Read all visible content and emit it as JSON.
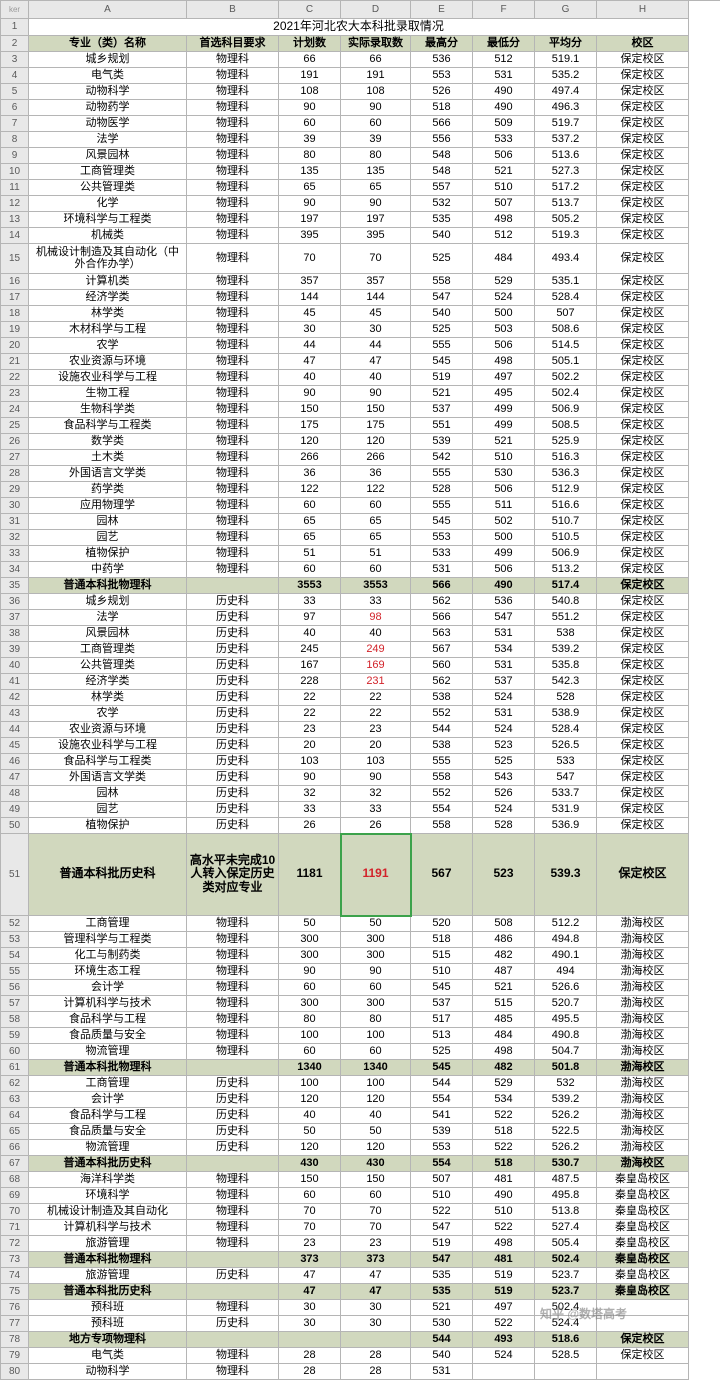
{
  "colHeaders": [
    "ker",
    "A",
    "B",
    "C",
    "D",
    "E",
    "F",
    "G",
    "H"
  ],
  "title": "2021年河北农大本科批录取情况",
  "headerRow": [
    "专业（类）名称",
    "首选科目要求",
    "计划数",
    "实际录取数",
    "最高分",
    "最低分",
    "平均分",
    "校区"
  ],
  "rows": [
    {
      "n": 3,
      "c": [
        "城乡规划",
        "物理科",
        "66",
        "66",
        "536",
        "512",
        "519.1",
        "保定校区"
      ]
    },
    {
      "n": 4,
      "c": [
        "电气类",
        "物理科",
        "191",
        "191",
        "553",
        "531",
        "535.2",
        "保定校区"
      ]
    },
    {
      "n": 5,
      "c": [
        "动物科学",
        "物理科",
        "108",
        "108",
        "526",
        "490",
        "497.4",
        "保定校区"
      ]
    },
    {
      "n": 6,
      "c": [
        "动物药学",
        "物理科",
        "90",
        "90",
        "518",
        "490",
        "496.3",
        "保定校区"
      ]
    },
    {
      "n": 7,
      "c": [
        "动物医学",
        "物理科",
        "60",
        "60",
        "566",
        "509",
        "519.7",
        "保定校区"
      ]
    },
    {
      "n": 8,
      "c": [
        "法学",
        "物理科",
        "39",
        "39",
        "556",
        "533",
        "537.2",
        "保定校区"
      ]
    },
    {
      "n": 9,
      "c": [
        "风景园林",
        "物理科",
        "80",
        "80",
        "548",
        "506",
        "513.6",
        "保定校区"
      ]
    },
    {
      "n": 10,
      "c": [
        "工商管理类",
        "物理科",
        "135",
        "135",
        "548",
        "521",
        "527.3",
        "保定校区"
      ]
    },
    {
      "n": 11,
      "c": [
        "公共管理类",
        "物理科",
        "65",
        "65",
        "557",
        "510",
        "517.2",
        "保定校区"
      ]
    },
    {
      "n": 12,
      "c": [
        "化学",
        "物理科",
        "90",
        "90",
        "532",
        "507",
        "513.7",
        "保定校区"
      ]
    },
    {
      "n": 13,
      "c": [
        "环境科学与工程类",
        "物理科",
        "197",
        "197",
        "535",
        "498",
        "505.2",
        "保定校区"
      ]
    },
    {
      "n": 14,
      "c": [
        "机械类",
        "物理科",
        "395",
        "395",
        "540",
        "512",
        "519.3",
        "保定校区"
      ]
    },
    {
      "n": 15,
      "tall": true,
      "c": [
        "机械设计制造及其自动化（中外合作办学）",
        "物理科",
        "70",
        "70",
        "525",
        "484",
        "493.4",
        "保定校区"
      ]
    },
    {
      "n": 16,
      "c": [
        "计算机类",
        "物理科",
        "357",
        "357",
        "558",
        "529",
        "535.1",
        "保定校区"
      ]
    },
    {
      "n": 17,
      "c": [
        "经济学类",
        "物理科",
        "144",
        "144",
        "547",
        "524",
        "528.4",
        "保定校区"
      ]
    },
    {
      "n": 18,
      "c": [
        "林学类",
        "物理科",
        "45",
        "45",
        "540",
        "500",
        "507",
        "保定校区"
      ]
    },
    {
      "n": 19,
      "c": [
        "木材科学与工程",
        "物理科",
        "30",
        "30",
        "525",
        "503",
        "508.6",
        "保定校区"
      ]
    },
    {
      "n": 20,
      "c": [
        "农学",
        "物理科",
        "44",
        "44",
        "555",
        "506",
        "514.5",
        "保定校区"
      ]
    },
    {
      "n": 21,
      "c": [
        "农业资源与环境",
        "物理科",
        "47",
        "47",
        "545",
        "498",
        "505.1",
        "保定校区"
      ]
    },
    {
      "n": 22,
      "c": [
        "设施农业科学与工程",
        "物理科",
        "40",
        "40",
        "519",
        "497",
        "502.2",
        "保定校区"
      ]
    },
    {
      "n": 23,
      "c": [
        "生物工程",
        "物理科",
        "90",
        "90",
        "521",
        "495",
        "502.4",
        "保定校区"
      ]
    },
    {
      "n": 24,
      "c": [
        "生物科学类",
        "物理科",
        "150",
        "150",
        "537",
        "499",
        "506.9",
        "保定校区"
      ]
    },
    {
      "n": 25,
      "c": [
        "食品科学与工程类",
        "物理科",
        "175",
        "175",
        "551",
        "499",
        "508.5",
        "保定校区"
      ]
    },
    {
      "n": 26,
      "c": [
        "数学类",
        "物理科",
        "120",
        "120",
        "539",
        "521",
        "525.9",
        "保定校区"
      ]
    },
    {
      "n": 27,
      "c": [
        "土木类",
        "物理科",
        "266",
        "266",
        "542",
        "510",
        "516.3",
        "保定校区"
      ]
    },
    {
      "n": 28,
      "c": [
        "外国语言文学类",
        "物理科",
        "36",
        "36",
        "555",
        "530",
        "536.3",
        "保定校区"
      ]
    },
    {
      "n": 29,
      "c": [
        "药学类",
        "物理科",
        "122",
        "122",
        "528",
        "506",
        "512.9",
        "保定校区"
      ]
    },
    {
      "n": 30,
      "c": [
        "应用物理学",
        "物理科",
        "60",
        "60",
        "555",
        "511",
        "516.6",
        "保定校区"
      ]
    },
    {
      "n": 31,
      "c": [
        "园林",
        "物理科",
        "65",
        "65",
        "545",
        "502",
        "510.7",
        "保定校区"
      ]
    },
    {
      "n": 32,
      "c": [
        "园艺",
        "物理科",
        "65",
        "65",
        "553",
        "500",
        "510.5",
        "保定校区"
      ]
    },
    {
      "n": 33,
      "c": [
        "植物保护",
        "物理科",
        "51",
        "51",
        "533",
        "499",
        "506.9",
        "保定校区"
      ]
    },
    {
      "n": 34,
      "c": [
        "中药学",
        "物理科",
        "60",
        "60",
        "531",
        "506",
        "513.2",
        "保定校区"
      ]
    },
    {
      "n": 35,
      "sum": true,
      "c": [
        "普通本科批物理科",
        "",
        "3553",
        "3553",
        "566",
        "490",
        "517.4",
        "保定校区"
      ]
    },
    {
      "n": 36,
      "c": [
        "城乡规划",
        "历史科",
        "33",
        "33",
        "562",
        "536",
        "540.8",
        "保定校区"
      ]
    },
    {
      "n": 37,
      "c": [
        "法学",
        "历史科",
        "97",
        {
          "t": "98",
          "red": true
        },
        "566",
        "547",
        "551.2",
        "保定校区"
      ]
    },
    {
      "n": 38,
      "c": [
        "风景园林",
        "历史科",
        "40",
        "40",
        "563",
        "531",
        "538",
        "保定校区"
      ]
    },
    {
      "n": 39,
      "c": [
        "工商管理类",
        "历史科",
        "245",
        {
          "t": "249",
          "red": true
        },
        "567",
        "534",
        "539.2",
        "保定校区"
      ]
    },
    {
      "n": 40,
      "c": [
        "公共管理类",
        "历史科",
        "167",
        {
          "t": "169",
          "red": true
        },
        "560",
        "531",
        "535.8",
        "保定校区"
      ]
    },
    {
      "n": 41,
      "c": [
        "经济学类",
        "历史科",
        "228",
        {
          "t": "231",
          "red": true
        },
        "562",
        "537",
        "542.3",
        "保定校区"
      ]
    },
    {
      "n": 42,
      "c": [
        "林学类",
        "历史科",
        "22",
        "22",
        "538",
        "524",
        "528",
        "保定校区"
      ]
    },
    {
      "n": 43,
      "c": [
        "农学",
        "历史科",
        "22",
        "22",
        "552",
        "531",
        "538.9",
        "保定校区"
      ]
    },
    {
      "n": 44,
      "c": [
        "农业资源与环境",
        "历史科",
        "23",
        "23",
        "544",
        "524",
        "528.4",
        "保定校区"
      ]
    },
    {
      "n": 45,
      "c": [
        "设施农业科学与工程",
        "历史科",
        "20",
        "20",
        "538",
        "523",
        "526.5",
        "保定校区"
      ]
    },
    {
      "n": 46,
      "c": [
        "食品科学与工程类",
        "历史科",
        "103",
        "103",
        "555",
        "525",
        "533",
        "保定校区"
      ]
    },
    {
      "n": 47,
      "c": [
        "外国语言文学类",
        "历史科",
        "90",
        "90",
        "558",
        "543",
        "547",
        "保定校区"
      ]
    },
    {
      "n": 48,
      "c": [
        "园林",
        "历史科",
        "32",
        "32",
        "552",
        "526",
        "533.7",
        "保定校区"
      ]
    },
    {
      "n": 49,
      "c": [
        "园艺",
        "历史科",
        "33",
        "33",
        "554",
        "524",
        "531.9",
        "保定校区"
      ]
    },
    {
      "n": 50,
      "c": [
        "植物保护",
        "历史科",
        "26",
        "26",
        "558",
        "528",
        "536.9",
        "保定校区"
      ]
    },
    {
      "n": 51,
      "big": true,
      "sum": true,
      "c": [
        "普通本科批历史科",
        "高水平未完成10人转入保定历史类对应专业",
        "1181",
        {
          "t": "1191",
          "red": true,
          "box": true
        },
        "567",
        "523",
        "539.3",
        "保定校区"
      ]
    },
    {
      "n": 52,
      "c": [
        "工商管理",
        "物理科",
        "50",
        "50",
        "520",
        "508",
        "512.2",
        "渤海校区"
      ]
    },
    {
      "n": 53,
      "c": [
        "管理科学与工程类",
        "物理科",
        "300",
        "300",
        "518",
        "486",
        "494.8",
        "渤海校区"
      ]
    },
    {
      "n": 54,
      "c": [
        "化工与制药类",
        "物理科",
        "300",
        "300",
        "515",
        "482",
        "490.1",
        "渤海校区"
      ]
    },
    {
      "n": 55,
      "c": [
        "环境生态工程",
        "物理科",
        "90",
        "90",
        "510",
        "487",
        "494",
        "渤海校区"
      ]
    },
    {
      "n": 56,
      "c": [
        "会计学",
        "物理科",
        "60",
        "60",
        "545",
        "521",
        "526.6",
        "渤海校区"
      ]
    },
    {
      "n": 57,
      "c": [
        "计算机科学与技术",
        "物理科",
        "300",
        "300",
        "537",
        "515",
        "520.7",
        "渤海校区"
      ]
    },
    {
      "n": 58,
      "c": [
        "食品科学与工程",
        "物理科",
        "80",
        "80",
        "517",
        "485",
        "495.5",
        "渤海校区"
      ]
    },
    {
      "n": 59,
      "c": [
        "食品质量与安全",
        "物理科",
        "100",
        "100",
        "513",
        "484",
        "490.8",
        "渤海校区"
      ]
    },
    {
      "n": 60,
      "c": [
        "物流管理",
        "物理科",
        "60",
        "60",
        "525",
        "498",
        "504.7",
        "渤海校区"
      ]
    },
    {
      "n": 61,
      "sum": true,
      "c": [
        "普通本科批物理科",
        "",
        "1340",
        "1340",
        "545",
        "482",
        "501.8",
        "渤海校区"
      ]
    },
    {
      "n": 62,
      "c": [
        "工商管理",
        "历史科",
        "100",
        "100",
        "544",
        "529",
        "532",
        "渤海校区"
      ]
    },
    {
      "n": 63,
      "c": [
        "会计学",
        "历史科",
        "120",
        "120",
        "554",
        "534",
        "539.2",
        "渤海校区"
      ]
    },
    {
      "n": 64,
      "c": [
        "食品科学与工程",
        "历史科",
        "40",
        "40",
        "541",
        "522",
        "526.2",
        "渤海校区"
      ]
    },
    {
      "n": 65,
      "c": [
        "食品质量与安全",
        "历史科",
        "50",
        "50",
        "539",
        "518",
        "522.5",
        "渤海校区"
      ]
    },
    {
      "n": 66,
      "c": [
        "物流管理",
        "历史科",
        "120",
        "120",
        "553",
        "522",
        "526.2",
        "渤海校区"
      ]
    },
    {
      "n": 67,
      "sum": true,
      "c": [
        "普通本科批历史科",
        "",
        "430",
        "430",
        "554",
        "518",
        "530.7",
        "渤海校区"
      ]
    },
    {
      "n": 68,
      "c": [
        "海洋科学类",
        "物理科",
        "150",
        "150",
        "507",
        "481",
        "487.5",
        "秦皇岛校区"
      ]
    },
    {
      "n": 69,
      "c": [
        "环境科学",
        "物理科",
        "60",
        "60",
        "510",
        "490",
        "495.8",
        "秦皇岛校区"
      ]
    },
    {
      "n": 70,
      "c": [
        "机械设计制造及其自动化",
        "物理科",
        "70",
        "70",
        "522",
        "510",
        "513.8",
        "秦皇岛校区"
      ]
    },
    {
      "n": 71,
      "c": [
        "计算机科学与技术",
        "物理科",
        "70",
        "70",
        "547",
        "522",
        "527.4",
        "秦皇岛校区"
      ]
    },
    {
      "n": 72,
      "c": [
        "旅游管理",
        "物理科",
        "23",
        "23",
        "519",
        "498",
        "505.4",
        "秦皇岛校区"
      ]
    },
    {
      "n": 73,
      "sum": true,
      "c": [
        "普通本科批物理科",
        "",
        "373",
        "373",
        "547",
        "481",
        "502.4",
        "秦皇岛校区"
      ]
    },
    {
      "n": 74,
      "c": [
        "旅游管理",
        "历史科",
        "47",
        "47",
        "535",
        "519",
        "523.7",
        "秦皇岛校区"
      ]
    },
    {
      "n": 75,
      "sum": true,
      "c": [
        "普通本科批历史科",
        "",
        "47",
        "47",
        "535",
        "519",
        "523.7",
        "秦皇岛校区"
      ]
    },
    {
      "n": 76,
      "c": [
        "预科班",
        "物理科",
        "30",
        "30",
        "521",
        "497",
        "502.4",
        ""
      ]
    },
    {
      "n": 77,
      "c": [
        "预科班",
        "历史科",
        "30",
        "30",
        "530",
        "522",
        "524.4",
        ""
      ]
    },
    {
      "n": 78,
      "sum": true,
      "c": [
        "地方专项物理科",
        "",
        "",
        "",
        "544",
        "493",
        "518.6",
        "保定校区"
      ]
    },
    {
      "n": 79,
      "c": [
        "电气类",
        "物理科",
        "28",
        "28",
        "540",
        "524",
        "528.5",
        "保定校区"
      ]
    },
    {
      "n": 80,
      "c": [
        "动物科学",
        "物理科",
        "28",
        "28",
        "531",
        "",
        "",
        ""
      ]
    }
  ],
  "watermark": "知乎 @数塔高考"
}
